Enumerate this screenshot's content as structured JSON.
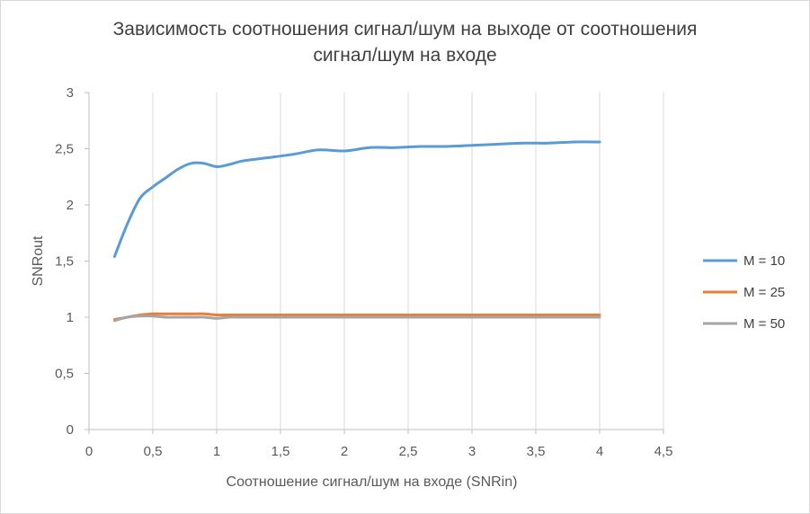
{
  "chart_data": {
    "type": "line",
    "title_lines": [
      "Зависимость соотношения сигнал/шум на выходе от соотношения",
      "сигнал/шум на входе"
    ],
    "xlabel": "Соотношение сигнал/шум на входе (SNRin)",
    "ylabel": "SNRout",
    "xlim": [
      0,
      4.5
    ],
    "ylim": [
      0,
      3
    ],
    "xticks": [
      0,
      0.5,
      1,
      1.5,
      2,
      2.5,
      3,
      3.5,
      4,
      4.5
    ],
    "xtick_labels": [
      "0",
      "0,5",
      "1",
      "1,5",
      "2",
      "2,5",
      "3",
      "3,5",
      "4",
      "4,5"
    ],
    "yticks": [
      0,
      0.5,
      1,
      1.5,
      2,
      2.5,
      3
    ],
    "ytick_labels": [
      "0",
      "0,5",
      "1",
      "1,5",
      "2",
      "2,5",
      "3"
    ],
    "grid": "vertical",
    "legend_position": "right",
    "x": [
      0.2,
      0.3,
      0.4,
      0.5,
      0.6,
      0.7,
      0.8,
      0.9,
      1.0,
      1.1,
      1.2,
      1.4,
      1.6,
      1.8,
      2.0,
      2.2,
      2.4,
      2.6,
      2.8,
      3.0,
      3.2,
      3.4,
      3.6,
      3.8,
      4.0
    ],
    "series": [
      {
        "name": "M = 10",
        "color": "#5b9bd5",
        "values": [
          1.54,
          1.83,
          2.06,
          2.16,
          2.24,
          2.32,
          2.37,
          2.37,
          2.34,
          2.36,
          2.39,
          2.42,
          2.45,
          2.49,
          2.48,
          2.51,
          2.51,
          2.52,
          2.52,
          2.53,
          2.54,
          2.55,
          2.55,
          2.56,
          2.56
        ]
      },
      {
        "name": "M = 25",
        "color": "#ed7d31",
        "values": [
          0.98,
          1.0,
          1.02,
          1.03,
          1.03,
          1.03,
          1.03,
          1.03,
          1.02,
          1.02,
          1.02,
          1.02,
          1.02,
          1.02,
          1.02,
          1.02,
          1.02,
          1.02,
          1.02,
          1.02,
          1.02,
          1.02,
          1.02,
          1.02,
          1.02
        ]
      },
      {
        "name": "M = 50",
        "color": "#a5a5a5",
        "values": [
          0.97,
          1.0,
          1.01,
          1.01,
          1.0,
          1.0,
          1.0,
          1.0,
          0.99,
          1.0,
          1.0,
          1.0,
          1.0,
          1.0,
          1.0,
          1.0,
          1.0,
          1.0,
          1.0,
          1.0,
          1.0,
          1.0,
          1.0,
          1.0,
          1.0
        ]
      }
    ]
  }
}
